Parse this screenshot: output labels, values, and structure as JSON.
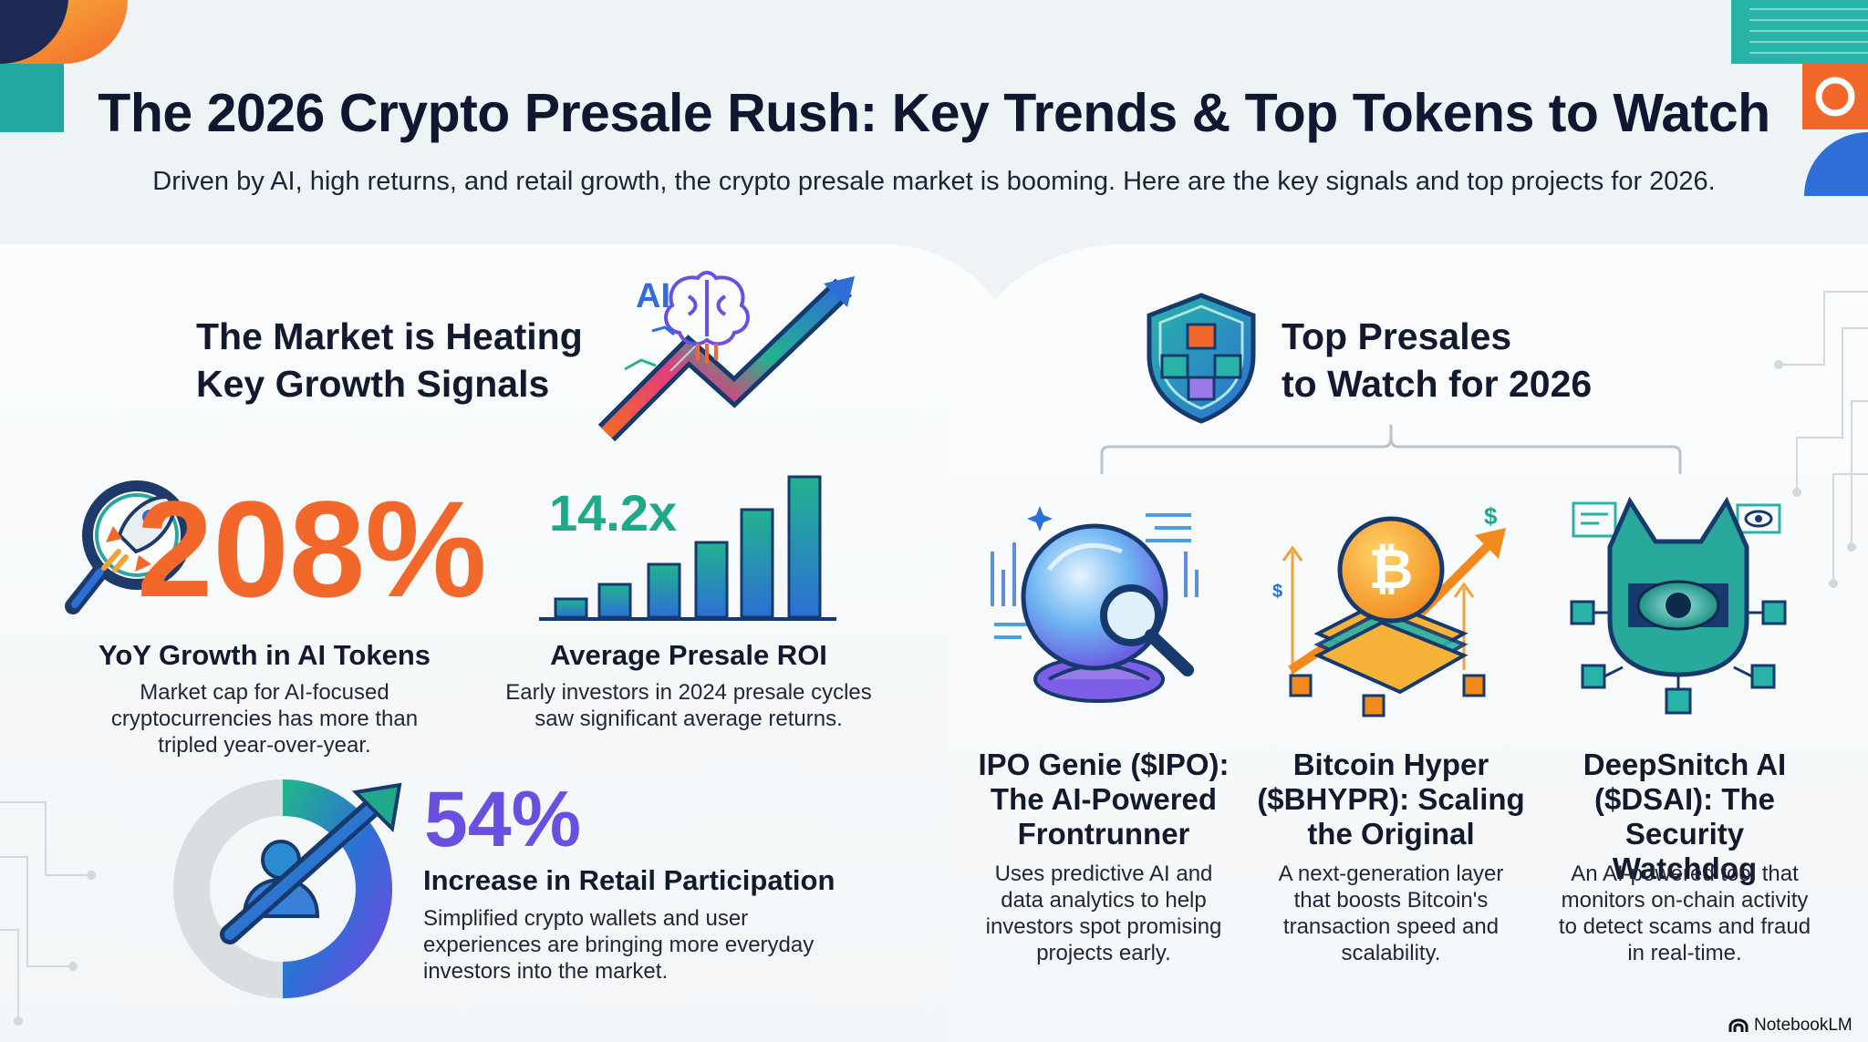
{
  "header": {
    "title": "The 2026 Crypto Presale Rush: Key Trends & Top Tokens to Watch",
    "subtitle": "Driven by AI, high returns, and retail growth, the crypto presale market is booming. Here are the key signals and top projects for 2026."
  },
  "market": {
    "heading_line1": "The Market is Heating",
    "heading_line2": "Key Growth Signals",
    "ai_badge": "AI",
    "stats": [
      {
        "value": "208%",
        "label": "YoY Growth in AI Tokens",
        "desc": [
          "Market cap for AI-focused",
          "cryptocurrencies has more than",
          "tripled year-over-year."
        ]
      },
      {
        "value": "14.2x",
        "label": "Average Presale ROI",
        "desc": [
          "Early investors in 2024 presale cycles",
          "saw significant average returns."
        ]
      },
      {
        "value": "54%",
        "label": "Increase in Retail Participation",
        "desc": [
          "Simplified crypto wallets and user",
          "experiences are bringing more everyday",
          "investors into the market."
        ]
      }
    ]
  },
  "presales": {
    "heading_line1": "Top Presales",
    "heading_line2": "to Watch for 2026",
    "cards": [
      {
        "title": [
          "IPO Genie ($IPO):",
          "The AI-Powered",
          "Frontrunner"
        ],
        "desc": [
          "Uses predictive AI and",
          "data analytics to help",
          "investors spot promising",
          "projects early."
        ]
      },
      {
        "title": [
          "Bitcoin Hyper",
          "($BHYPR): Scaling",
          "the Original"
        ],
        "desc": [
          "A next-generation layer",
          "that boosts Bitcoin's",
          "transaction speed and",
          "scalability."
        ]
      },
      {
        "title": [
          "DeepSnitch AI",
          "($DSAI): The Security",
          "Watchdog"
        ],
        "desc": [
          "An AI-powered tool that",
          "monitors on-chain activity",
          "to detect scams and fraud",
          "in real-time."
        ]
      }
    ]
  },
  "footer": {
    "brand": "NotebookLM"
  },
  "colors": {
    "orange": "#f26b2a",
    "teal": "#1fa88a",
    "blue": "#2d6fd6",
    "purple": "#6a4fe0",
    "navy": "#0f1830"
  },
  "icons": [
    "rocket-magnifier-icon",
    "ai-brain-icon",
    "trend-arrow-icon",
    "bar-chart-icon",
    "user-growth-icon",
    "shield-blocks-icon",
    "crystal-ball-icon",
    "bitcoin-stack-icon",
    "robot-eye-icon",
    "notebooklm-logo-icon"
  ]
}
